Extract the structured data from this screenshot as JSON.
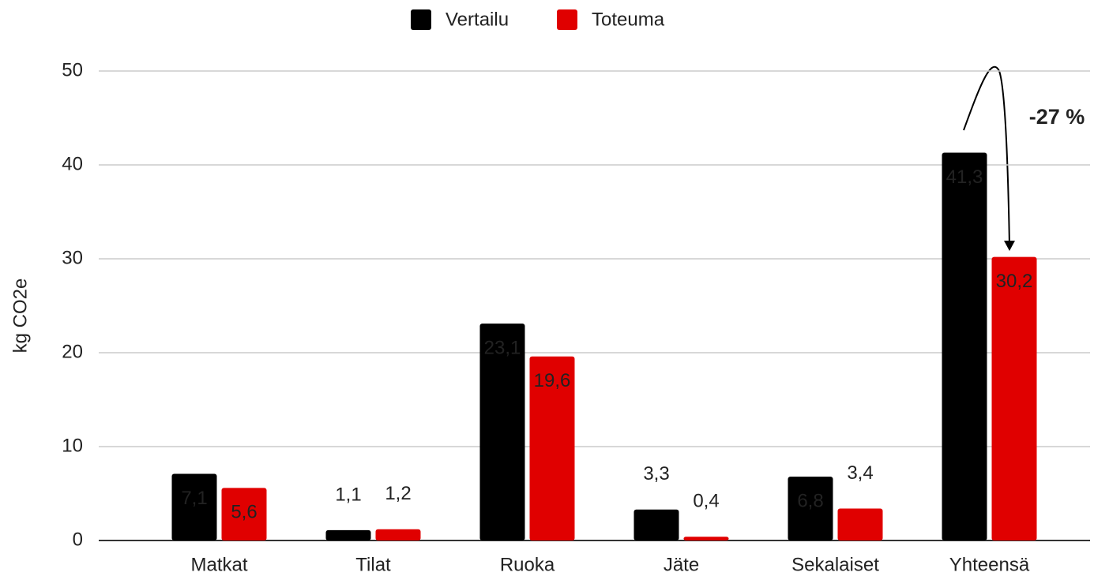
{
  "chart_data": {
    "type": "bar",
    "y_label": "kg CO2e",
    "annotation": "-27 %",
    "categories": [
      "Matkat",
      "Tilat",
      "Ruoka",
      "Jäte",
      "Sekalaiset",
      "Yhteensä"
    ],
    "series": [
      {
        "name": "Vertailu",
        "color": "#000000",
        "values": [
          7.1,
          1.1,
          23.1,
          3.3,
          6.8,
          41.3
        ],
        "value_labels": [
          "7,1",
          "1,1",
          "23,1",
          "3,3",
          "6,8",
          "41,3"
        ]
      },
      {
        "name": "Toteuma",
        "color": "#e00000",
        "values": [
          5.6,
          1.2,
          19.6,
          0.4,
          3.4,
          30.2
        ],
        "value_labels": [
          "5,6",
          "1,2",
          "19,6",
          "0,4",
          "3,4",
          "30,2"
        ]
      }
    ],
    "ylim": [
      0,
      50
    ],
    "yticks": [
      0,
      10,
      20,
      30,
      40,
      50
    ],
    "grid": true,
    "legend": "top"
  }
}
